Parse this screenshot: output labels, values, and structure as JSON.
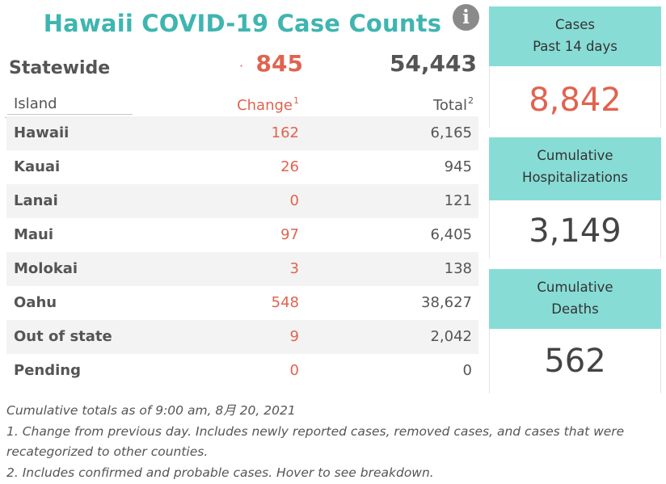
{
  "title": "Hawaii COVID-19 Case Counts",
  "info_icon_glyph": "i",
  "statewide": {
    "label": "Statewide",
    "marker": "·",
    "change": "845",
    "total": "54,443"
  },
  "headers": {
    "island": "Island",
    "change": "Change",
    "change_sup": "1",
    "total": "Total",
    "total_sup": "2"
  },
  "rows": [
    {
      "island": "Hawaii",
      "change": "162",
      "total": "6,165"
    },
    {
      "island": "Kauai",
      "change": "26",
      "total": "945"
    },
    {
      "island": "Lanai",
      "change": "0",
      "total": "121"
    },
    {
      "island": "Maui",
      "change": "97",
      "total": "6,405"
    },
    {
      "island": "Molokai",
      "change": "3",
      "total": "138"
    },
    {
      "island": "Oahu",
      "change": "548",
      "total": "38,627"
    },
    {
      "island": "Out of state",
      "change": "9",
      "total": "2,042"
    },
    {
      "island": "Pending",
      "change": "0",
      "total": "0"
    }
  ],
  "notes": {
    "asof": "Cumulative totals as of 9:00 am, 8月 20, 2021",
    "note1": "1. Change from previous day. Includes newly reported cases, removed cases, and cases that were recategorized to other counties.",
    "note2": "2. Includes confirmed and probable cases. Hover to see breakdown."
  },
  "cards": {
    "cases14": {
      "line1": "Cases",
      "line2": "Past 14 days",
      "value": "8,842"
    },
    "hosp": {
      "line1": "Cumulative",
      "line2": "Hospitalizations",
      "value": "3,149"
    },
    "deaths": {
      "line1": "Cumulative",
      "line2": "Deaths",
      "value": "562"
    }
  },
  "colors": {
    "title": "#3fb5b0",
    "change": "#e0634f",
    "card_header": "#88dcd6",
    "alt_row": "#f3f3f3"
  }
}
